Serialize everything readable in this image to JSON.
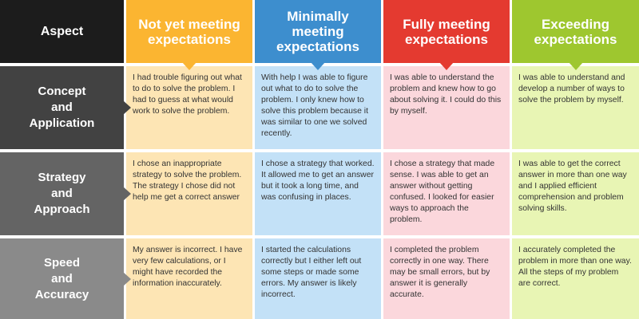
{
  "headers": {
    "aspect": "Aspect",
    "not_yet": "Not yet meeting expectations",
    "minimally": "Minimally meeting expectations",
    "fully": "Fully meeting expectations",
    "exceeding": "Exceeding expectations"
  },
  "colors": {
    "aspect_header": "#1c1c1c",
    "not_yet": "#fbb531",
    "minimally": "#3d8ece",
    "fully": "#e43a30",
    "exceeding": "#9ec72f"
  },
  "rows": [
    {
      "aspect": "Concept\nand\nApplication",
      "not_yet": "I had trouble figuring out what to do to solve the problem. I had to guess at what would work to solve the problem.",
      "minimally": "With help I was able to figure out what to do to solve the problem. I only knew how to solve this problem because it was similar to one we solved recently.",
      "fully": "I was able to understand the problem and knew how to go about solving it. I could do this by myself.",
      "exceeding": "I was able to understand and develop a number of ways to solve the problem by myself."
    },
    {
      "aspect": "Strategy\nand\nApproach",
      "not_yet": "I chose an inappropriate strategy to solve the problem. The strategy I chose did not help me get a correct answer",
      "minimally": "I chose a strategy that worked. It allowed me to get an answer but it took a long time, and was confusing in places.",
      "fully": "I chose a strategy that made sense. I was able to get an answer without getting confused. I looked for easier ways to approach the problem.",
      "exceeding": "I was able to get the correct answer in more than one way and I applied efficient comprehension and problem solving skills."
    },
    {
      "aspect": "Speed\nand\nAccuracy",
      "not_yet": "My answer is incorrect. I have very few calculations, or I might have recorded the information inaccurately.",
      "minimally": "I started the calculations correctly but I either left out some steps or made some errors. My answer is likely incorrect.",
      "fully": "I completed the problem correctly in one way. There may be small errors, but by answer it is generally accurate.",
      "exceeding": "I accurately completed the problem in more than one way. All the steps of my problem are correct."
    }
  ]
}
